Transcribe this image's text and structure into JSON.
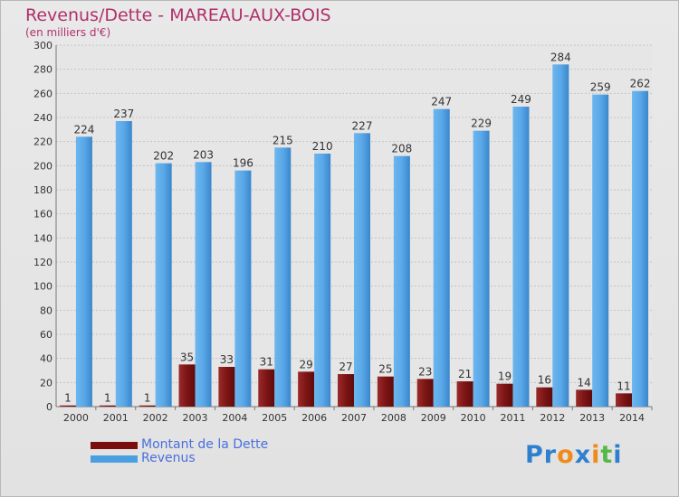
{
  "chart_data": {
    "type": "bar",
    "title": "Revenus/Dette - MAREAU-AUX-BOIS",
    "subtitle": "(en milliers d'€)",
    "categories": [
      "2000",
      "2001",
      "2002",
      "2003",
      "2004",
      "2005",
      "2006",
      "2007",
      "2008",
      "2009",
      "2010",
      "2011",
      "2012",
      "2013",
      "2014"
    ],
    "series": [
      {
        "name": "Montant de la Dette",
        "color": "#7a0d0d",
        "values": [
          1,
          1,
          1,
          35,
          33,
          31,
          29,
          27,
          25,
          23,
          21,
          19,
          16,
          14,
          11
        ]
      },
      {
        "name": "Revenus",
        "color": "#4a9fe0",
        "values": [
          224,
          237,
          202,
          203,
          196,
          215,
          210,
          227,
          208,
          247,
          229,
          249,
          284,
          259,
          262
        ]
      }
    ],
    "ylim": [
      0,
      300
    ],
    "yticks": [
      0,
      20,
      40,
      60,
      80,
      100,
      120,
      140,
      160,
      180,
      200,
      220,
      240,
      260,
      280,
      300
    ],
    "grid": true,
    "legend_position": "bottom-left"
  },
  "logo": {
    "text": "Proxiti",
    "letters": [
      "P",
      "r",
      "o",
      "x",
      "i",
      "t",
      "i"
    ],
    "colors": [
      "#2f7fcf",
      "#2f7fcf",
      "#f08a1c",
      "#2f7fcf",
      "#f08a1c",
      "#57b84a",
      "#2f7fcf"
    ]
  }
}
